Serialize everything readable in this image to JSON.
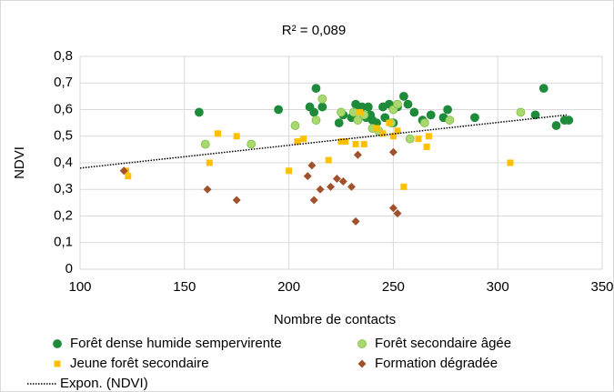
{
  "chart_data": {
    "type": "scatter",
    "title": "R² = 0,089",
    "xlabel": "Nombre de contacts",
    "ylabel": "NDVI",
    "xlim": [
      100,
      350
    ],
    "xticks": [
      100,
      150,
      200,
      250,
      300,
      350
    ],
    "ylim": [
      0,
      0.8
    ],
    "yticks": [
      0,
      {
        "value": 0.1,
        "label": "0,1"
      },
      {
        "value": 0.2,
        "label": "0,2"
      },
      {
        "value": 0.3,
        "label": "0,3"
      },
      {
        "value": 0.4,
        "label": "0,4"
      },
      {
        "value": 0.5,
        "label": "0,5"
      },
      {
        "value": 0.6,
        "label": "0,6"
      },
      {
        "value": 0.7,
        "label": "0,7"
      },
      {
        "value": 0.8,
        "label": "0,8"
      }
    ],
    "grid": true,
    "legend": "bottom",
    "series": [
      {
        "name": "Forêt dense humide sempervirente",
        "color": "#1e8b3a",
        "marker": "circle",
        "x": [
          157,
          195,
          210,
          212,
          213,
          216,
          224,
          226,
          230,
          232,
          233,
          235,
          237,
          238,
          239,
          240,
          242,
          245,
          246,
          248,
          250,
          252,
          255,
          257,
          260,
          264,
          268,
          274,
          276,
          289,
          318,
          322,
          328,
          332,
          334
        ],
        "values": [
          0.59,
          0.6,
          0.61,
          0.59,
          0.68,
          0.61,
          0.55,
          0.58,
          0.57,
          0.62,
          0.6,
          0.61,
          0.57,
          0.61,
          0.58,
          0.56,
          0.55,
          0.61,
          0.57,
          0.62,
          0.55,
          0.61,
          0.65,
          0.62,
          0.59,
          0.56,
          0.58,
          0.57,
          0.6,
          0.57,
          0.58,
          0.68,
          0.54,
          0.56,
          0.56
        ]
      },
      {
        "name": "Forêt secondaire âgée",
        "color": "#a9d86e",
        "marker": "circle",
        "x": [
          160,
          182,
          203,
          213,
          216,
          225,
          231,
          233,
          236,
          240,
          243,
          249,
          250,
          252,
          258,
          265,
          277,
          311
        ],
        "values": [
          0.47,
          0.47,
          0.54,
          0.56,
          0.64,
          0.59,
          0.59,
          0.56,
          0.58,
          0.53,
          0.52,
          0.55,
          0.6,
          0.62,
          0.49,
          0.55,
          0.56,
          0.59
        ]
      },
      {
        "name": "Jeune forêt secondaire",
        "color": "#ffc000",
        "marker": "square",
        "x": [
          122,
          123,
          162,
          166,
          175,
          200,
          204,
          207,
          219,
          225,
          227,
          232,
          234,
          236,
          242,
          245,
          248,
          250,
          252,
          255,
          262,
          266,
          267,
          306
        ],
        "values": [
          0.37,
          0.35,
          0.4,
          0.51,
          0.5,
          0.37,
          0.48,
          0.49,
          0.41,
          0.48,
          0.48,
          0.47,
          0.59,
          0.47,
          0.53,
          0.51,
          0.55,
          0.5,
          0.52,
          0.31,
          0.49,
          0.46,
          0.5,
          0.4
        ]
      },
      {
        "name": "Formation dégradée",
        "color": "#a0522d",
        "marker": "diamond",
        "x": [
          121,
          161,
          175,
          209,
          211,
          212,
          215,
          220,
          223,
          226,
          230,
          232,
          233,
          250,
          250,
          252
        ],
        "values": [
          0.37,
          0.3,
          0.26,
          0.35,
          0.39,
          0.26,
          0.3,
          0.31,
          0.34,
          0.33,
          0.31,
          0.18,
          0.43,
          0.44,
          0.23,
          0.21
        ]
      }
    ],
    "trendline": {
      "name": "Expon. (NDVI)",
      "color": "#000000",
      "x": [
        100,
        333
      ],
      "values": [
        0.38,
        0.58
      ]
    }
  }
}
